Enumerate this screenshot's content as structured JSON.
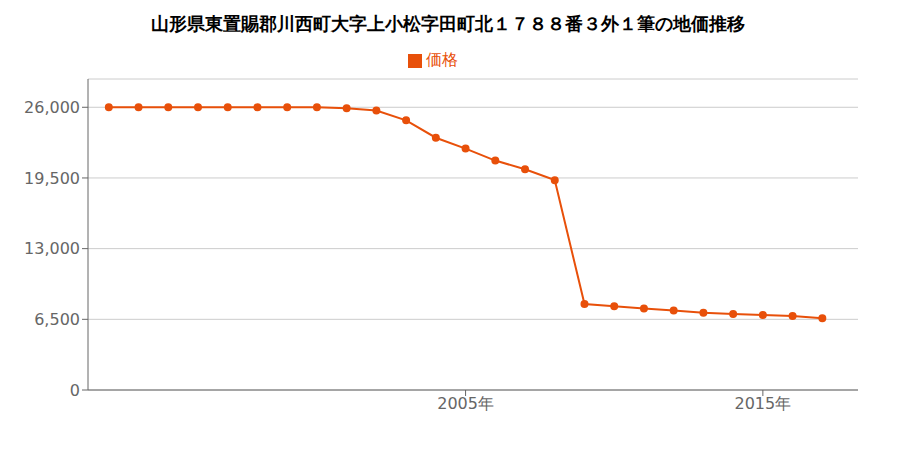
{
  "chart_data": {
    "type": "line",
    "title": "山形県東置賜郡川西町大字上小松字田町北１７８８番３外１筆の地価推移",
    "x": [
      1993,
      1994,
      1995,
      1996,
      1997,
      1998,
      1999,
      2000,
      2001,
      2002,
      2003,
      2004,
      2005,
      2006,
      2007,
      2008,
      2009,
      2010,
      2011,
      2012,
      2013,
      2014,
      2015,
      2016,
      2017
    ],
    "series": [
      {
        "name": "価格",
        "color": "#E8500A",
        "marker": "circle",
        "values": [
          26000,
          26000,
          26000,
          26000,
          26000,
          26000,
          26000,
          26000,
          25900,
          25700,
          24800,
          23200,
          22200,
          21100,
          20300,
          19300,
          7900,
          7700,
          7500,
          7300,
          7100,
          7000,
          6900,
          6800,
          6600
        ]
      }
    ],
    "xlim": [
      1992.3,
      2018.2
    ],
    "xticks": [
      {
        "value": 2005,
        "label": "2005年"
      },
      {
        "value": 2015,
        "label": "2015年"
      }
    ],
    "ylim": [
      0,
      28600
    ],
    "yticks": [
      0,
      {
        "value": 6500,
        "label": "6,500"
      },
      {
        "value": 13000,
        "label": "13,000"
      },
      {
        "value": 19500,
        "label": "19,500"
      },
      {
        "value": 26000,
        "label": "26,000"
      }
    ],
    "grid": true,
    "legend": "top"
  }
}
